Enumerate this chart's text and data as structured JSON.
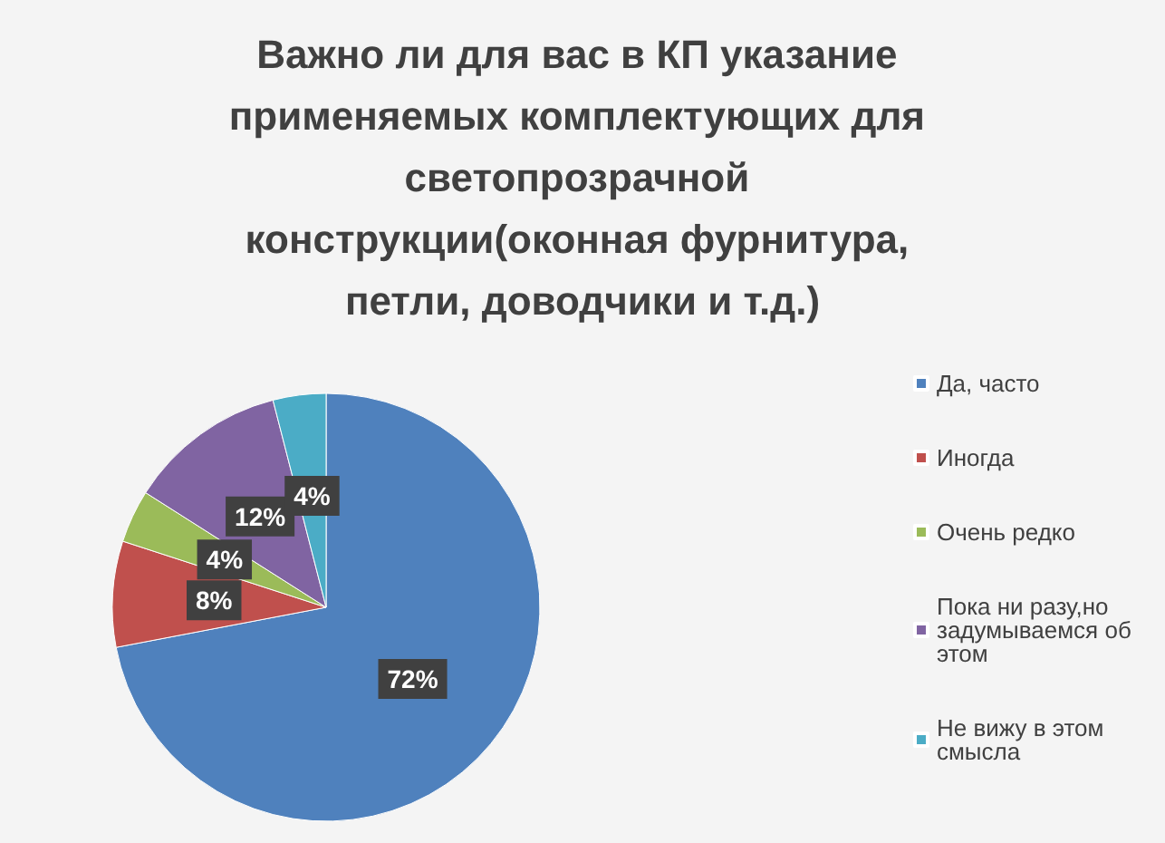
{
  "chart_data": {
    "type": "pie",
    "title": "Важно ли для вас в КП указание применяемых комплектующих для светопрозрачной конструкции(оконная фурнитура, петли, доводчики и т.д.)",
    "categories": [
      "Да, часто",
      "Иногда",
      "Очень редко",
      "Пока ни разу,но задумываемся об этом",
      "Не вижу в этом смысла"
    ],
    "values": [
      72,
      8,
      4,
      12,
      4
    ],
    "value_labels": [
      "72%",
      "8%",
      "4%",
      "12%",
      "4%"
    ],
    "colors": [
      "#4f81bd",
      "#c0504d",
      "#9bbb59",
      "#8064a2",
      "#4bacc6"
    ],
    "legend": "right"
  }
}
